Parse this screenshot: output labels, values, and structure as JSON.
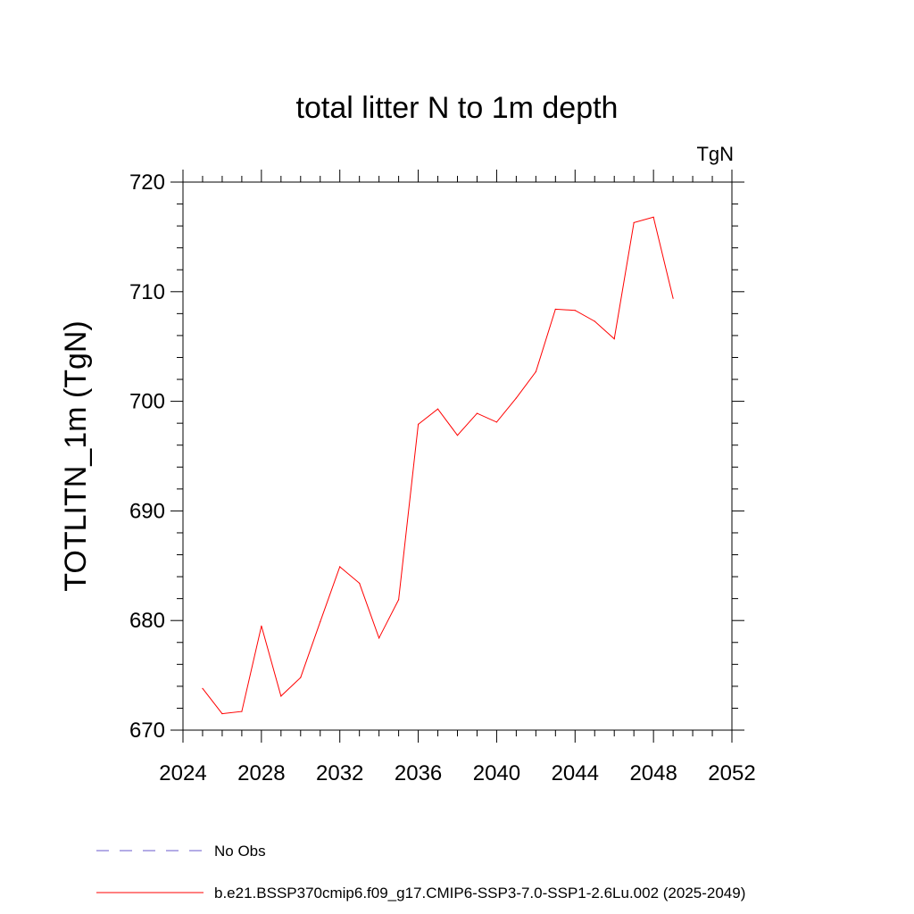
{
  "chart_data": {
    "type": "line",
    "title": "total litter N to 1m depth",
    "units_label": "TgN",
    "ylabel": "TOTLITN_1m  (TgN)",
    "xlabel": "",
    "xlim": [
      2024,
      2052
    ],
    "ylim": [
      670,
      720
    ],
    "xticks": [
      2024,
      2028,
      2032,
      2036,
      2040,
      2044,
      2048,
      2052
    ],
    "yticks": [
      670,
      680,
      690,
      700,
      710,
      720
    ],
    "grid": false,
    "series": [
      {
        "name": "b.e21.BSSP370cmip6.f09_g17.CMIP6-SSP3-7.0-SSP1-2.6Lu.002 (2025-2049)",
        "color": "#ff0000",
        "style": "solid",
        "x": [
          2025,
          2026,
          2027,
          2028,
          2029,
          2030,
          2031,
          2032,
          2033,
          2034,
          2035,
          2036,
          2037,
          2038,
          2039,
          2040,
          2041,
          2042,
          2043,
          2044,
          2045,
          2046,
          2047,
          2048,
          2049
        ],
        "y": [
          673.8,
          671.5,
          671.7,
          679.5,
          673.1,
          674.8,
          679.9,
          684.9,
          683.4,
          678.4,
          681.9,
          697.9,
          699.3,
          696.9,
          698.9,
          698.1,
          700.3,
          702.7,
          708.4,
          708.3,
          707.3,
          705.7,
          716.3,
          716.8,
          709.4
        ]
      }
    ],
    "legend": [
      {
        "label": "No Obs",
        "color": "#6a5acd",
        "style": "dashed"
      },
      {
        "label": "b.e21.BSSP370cmip6.f09_g17.CMIP6-SSP3-7.0-SSP1-2.6Lu.002 (2025-2049)",
        "color": "#ff0000",
        "style": "solid"
      }
    ],
    "legend_position": "bottom"
  }
}
